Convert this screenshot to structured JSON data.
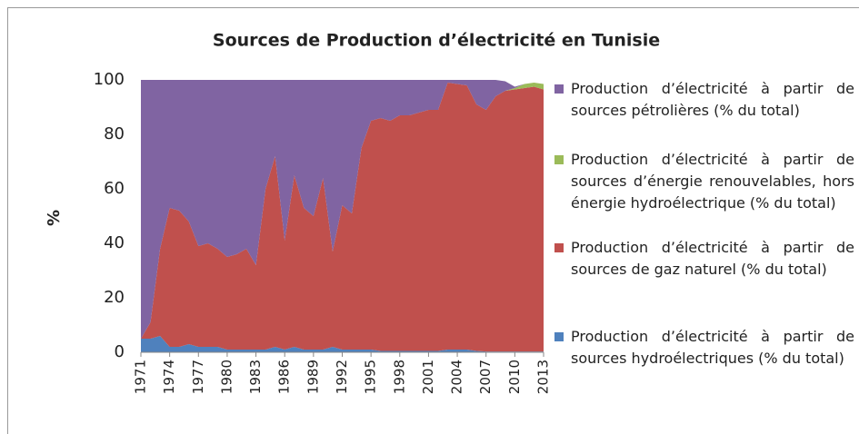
{
  "chart_data": {
    "type": "stacked_area",
    "title": "Sources de Production d’électricité en Tunisie",
    "y_label": "%",
    "categories": [
      "1971",
      null,
      null,
      "1974",
      null,
      null,
      "1977",
      null,
      null,
      "1980",
      null,
      null,
      "1983",
      null,
      null,
      "1986",
      null,
      null,
      "1989",
      null,
      null,
      "1992",
      null,
      null,
      "1995",
      null,
      null,
      "1998",
      null,
      null,
      "2001",
      null,
      null,
      "2004",
      null,
      null,
      "2007",
      null,
      null,
      "2010",
      null,
      null,
      "2013"
    ],
    "ylim": [
      0,
      100
    ],
    "yticks": [
      0,
      20,
      40,
      60,
      80,
      100
    ],
    "grid": false,
    "series": [
      {
        "name": "Production d’électricité à partir de sources hydroélectriques (% du total)",
        "color": "#4f81bd",
        "values": [
          5,
          5,
          6,
          2,
          2,
          3,
          2,
          2,
          2,
          1,
          1,
          1,
          1,
          1,
          2,
          1,
          2,
          1,
          1,
          1,
          2,
          1,
          1,
          1,
          1,
          0.5,
          0.5,
          0.5,
          0.5,
          0.5,
          0.5,
          0.5,
          1,
          1,
          1,
          0.5,
          0.3,
          0.3,
          0.3,
          0.3,
          0.3,
          0.3,
          0.3
        ]
      },
      {
        "name": "Production d’électricité à partir de sources de gaz naturel (% du total)",
        "color": "#c0504d",
        "values": [
          0,
          6,
          32,
          51,
          50,
          45,
          37,
          38,
          36,
          34,
          35,
          37,
          31,
          59,
          70,
          40,
          63,
          52,
          49,
          63,
          35,
          53,
          50,
          74,
          84,
          85.5,
          84.5,
          86.5,
          86.5,
          87.5,
          88.5,
          88.5,
          98,
          97.5,
          97,
          90.5,
          88.7,
          93.7,
          95.7,
          96.2,
          96.7,
          97.2,
          96.2
        ]
      },
      {
        "name": "Production d’électricité à partir de sources d’énergie renouvelables, hors énergie hydroélectrique (% du total)",
        "color": "#9bbb59",
        "values": [
          0,
          0,
          0,
          0,
          0,
          0,
          0,
          0,
          0,
          0,
          0,
          0,
          0,
          0,
          0,
          0,
          0,
          0,
          0,
          0,
          0,
          0,
          0,
          0,
          0,
          0,
          0,
          0,
          0,
          0,
          0,
          0,
          0,
          0,
          0,
          0,
          0,
          0,
          0,
          0.5,
          1.5,
          1.5,
          2
        ]
      },
      {
        "name": "Production d’électricité à partir de sources pétrolières (% du total)",
        "color": "#8064a2",
        "values": [
          95,
          89,
          62,
          47,
          48,
          52,
          61,
          60,
          62,
          65,
          64,
          62,
          68,
          40,
          28,
          59,
          35,
          47,
          50,
          36,
          63,
          46,
          49,
          25,
          15,
          14,
          15,
          13,
          13,
          12,
          11,
          11,
          1,
          1.5,
          2,
          9,
          11,
          6,
          3.5,
          0.5,
          0,
          0,
          0
        ]
      }
    ]
  }
}
